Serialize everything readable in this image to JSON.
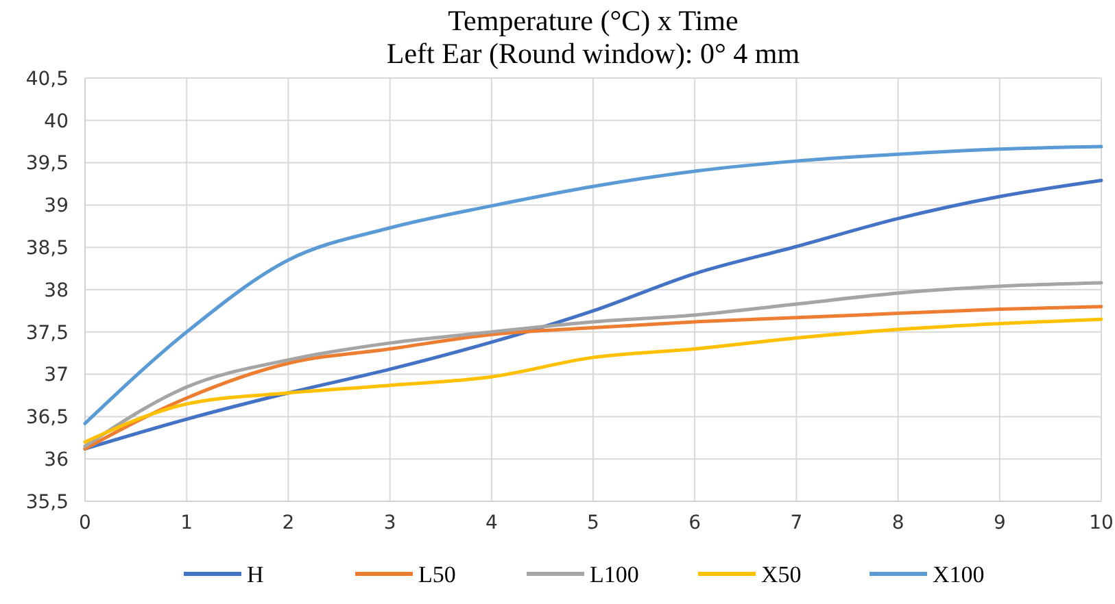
{
  "chart_data": {
    "type": "line",
    "title": "Temperature (°C) x Time",
    "subtitle": "Left Ear (Round window): 0° 4 mm",
    "x": [
      0,
      1,
      2,
      3,
      4,
      5,
      6,
      7,
      8,
      9,
      10
    ],
    "xlim": [
      0,
      10
    ],
    "xticks": [
      0,
      1,
      2,
      3,
      4,
      5,
      6,
      7,
      8,
      9,
      10
    ],
    "ylim": [
      35.5,
      40.5
    ],
    "yticks": [
      {
        "value": 35.5,
        "label": "35,5"
      },
      36,
      {
        "value": 36.5,
        "label": "36,5"
      },
      37,
      {
        "value": 37.5,
        "label": "37,5"
      },
      38,
      {
        "value": 38.5,
        "label": "38,5"
      },
      39,
      {
        "value": 39.5,
        "label": "39,5"
      },
      40,
      {
        "value": 40.5,
        "label": "40,5"
      }
    ],
    "grid": true,
    "legend": "bottom",
    "marker": "none",
    "line_style": "solid",
    "series": [
      {
        "name": "H",
        "color": "#4472c4",
        "values": [
          36.12,
          36.47,
          36.78,
          37.06,
          37.38,
          37.75,
          38.19,
          38.51,
          38.84,
          39.1,
          39.29
        ]
      },
      {
        "name": "L50",
        "color": "#ed7d31",
        "values": [
          36.12,
          36.72,
          37.13,
          37.3,
          37.47,
          37.55,
          37.62,
          37.67,
          37.72,
          37.77,
          37.8
        ]
      },
      {
        "name": "L100",
        "color": "#a5a5a5",
        "values": [
          36.15,
          36.85,
          37.17,
          37.37,
          37.5,
          37.62,
          37.7,
          37.83,
          37.96,
          38.04,
          38.08
        ]
      },
      {
        "name": "X50",
        "color": "#ffc000",
        "values": [
          36.2,
          36.65,
          36.78,
          36.87,
          36.97,
          37.2,
          37.3,
          37.43,
          37.53,
          37.6,
          37.65
        ]
      },
      {
        "name": "X100",
        "color": "#5b9bd5",
        "values": [
          36.42,
          37.5,
          38.35,
          38.73,
          38.99,
          39.22,
          39.4,
          39.52,
          39.6,
          39.66,
          39.69
        ]
      }
    ]
  }
}
